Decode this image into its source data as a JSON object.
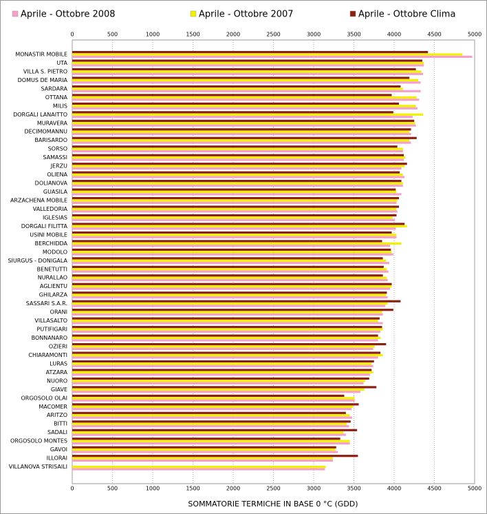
{
  "chart_data": {
    "type": "bar",
    "orientation": "horizontal",
    "x_label": "SOMMATORIE TERMICHE IN BASE 0 °C (GDD)",
    "categories": [
      "MONASTIR MOBILE",
      "UTA",
      "VILLA S. PIETRO",
      "DOMUS DE MARIA",
      "SARDARA",
      "OTTANA",
      "MILIS",
      "DORGALI LANAITTO",
      "MURAVERA",
      "DECIMOMANNU",
      "BARISARDO",
      "SORSO",
      "SAMASSI",
      "JERZU",
      "OLIENA",
      "DOLIANOVA",
      "GUASILA",
      "ARZACHENA MOBILE",
      "VALLEDORIA",
      "IGLESIAS",
      "DORGALI FILITTA",
      "USINI MOBILE",
      "BERCHIDDA",
      "MODOLO",
      "SIURGUS - DONIGALA",
      "BENETUTTI",
      "NURALLAO",
      "AGLIENTU",
      "GHILARZA",
      "SASSARI S.A.R.",
      "ORANI",
      "VILLASALTO",
      "PUTIFIGARI",
      "BONNANARO",
      "OZIERI",
      "CHIARAMONTI",
      "LURAS",
      "ATZARA",
      "NUORO",
      "GIAVE",
      "ORGOSOLO OLAI",
      "MACOMER",
      "ARITZO",
      "BITTI",
      "SADALI",
      "ORGOSOLO MONTES",
      "GAVOI",
      "ILLORAI",
      "VILLANOVA STRISAILI"
    ],
    "series": [
      {
        "name": "Aprile - Ottobre 2008",
        "color": "#f4a0c8",
        "values": [
          4970,
          4370,
          4360,
          4330,
          4330,
          4310,
          4290,
          4230,
          4270,
          4210,
          4210,
          4110,
          4120,
          4090,
          4130,
          4110,
          4090,
          4030,
          4040,
          4010,
          4020,
          4030,
          3950,
          3990,
          3940,
          3930,
          3920,
          3950,
          3920,
          3890,
          3860,
          3860,
          3830,
          3800,
          3740,
          3800,
          3740,
          3700,
          3620,
          3580,
          3510,
          3470,
          3480,
          3440,
          3400,
          3450,
          3300,
          3240,
          3140
        ]
      },
      {
        "name": "Aprile - Ottobre 2007",
        "color": "#f0f000",
        "values": [
          4850,
          4370,
          4340,
          4300,
          4110,
          4280,
          4270,
          4360,
          4260,
          4190,
          4190,
          4110,
          4140,
          4130,
          4110,
          4110,
          4030,
          4040,
          4030,
          3980,
          4160,
          4030,
          4090,
          3970,
          3900,
          3910,
          3910,
          3970,
          3900,
          3920,
          3850,
          3800,
          3860,
          3830,
          3760,
          3860,
          3720,
          3740,
          3640,
          3630,
          3510,
          3490,
          3450,
          3410,
          3370,
          3450,
          3270,
          3240,
          3150
        ]
      },
      {
        "name": "Aprile - Ottobre Clima",
        "color": "#8b2010",
        "values": [
          4420,
          4350,
          4270,
          4190,
          4080,
          3970,
          4060,
          3990,
          4250,
          4210,
          4280,
          4040,
          4120,
          4160,
          4070,
          4090,
          4020,
          4060,
          4060,
          4030,
          4130,
          3970,
          3850,
          3960,
          3860,
          3870,
          3860,
          3970,
          3910,
          4080,
          3990,
          3820,
          3850,
          3800,
          3900,
          3830,
          3750,
          3720,
          3690,
          3780,
          3380,
          3560,
          3400,
          3460,
          3540,
          3330,
          3280,
          3550,
          null
        ]
      }
    ],
    "xlim": [
      0,
      5000
    ],
    "xticks": [
      0,
      500,
      1000,
      1500,
      2000,
      2500,
      3000,
      3500,
      4000,
      4500,
      5000
    ],
    "grid": true
  }
}
